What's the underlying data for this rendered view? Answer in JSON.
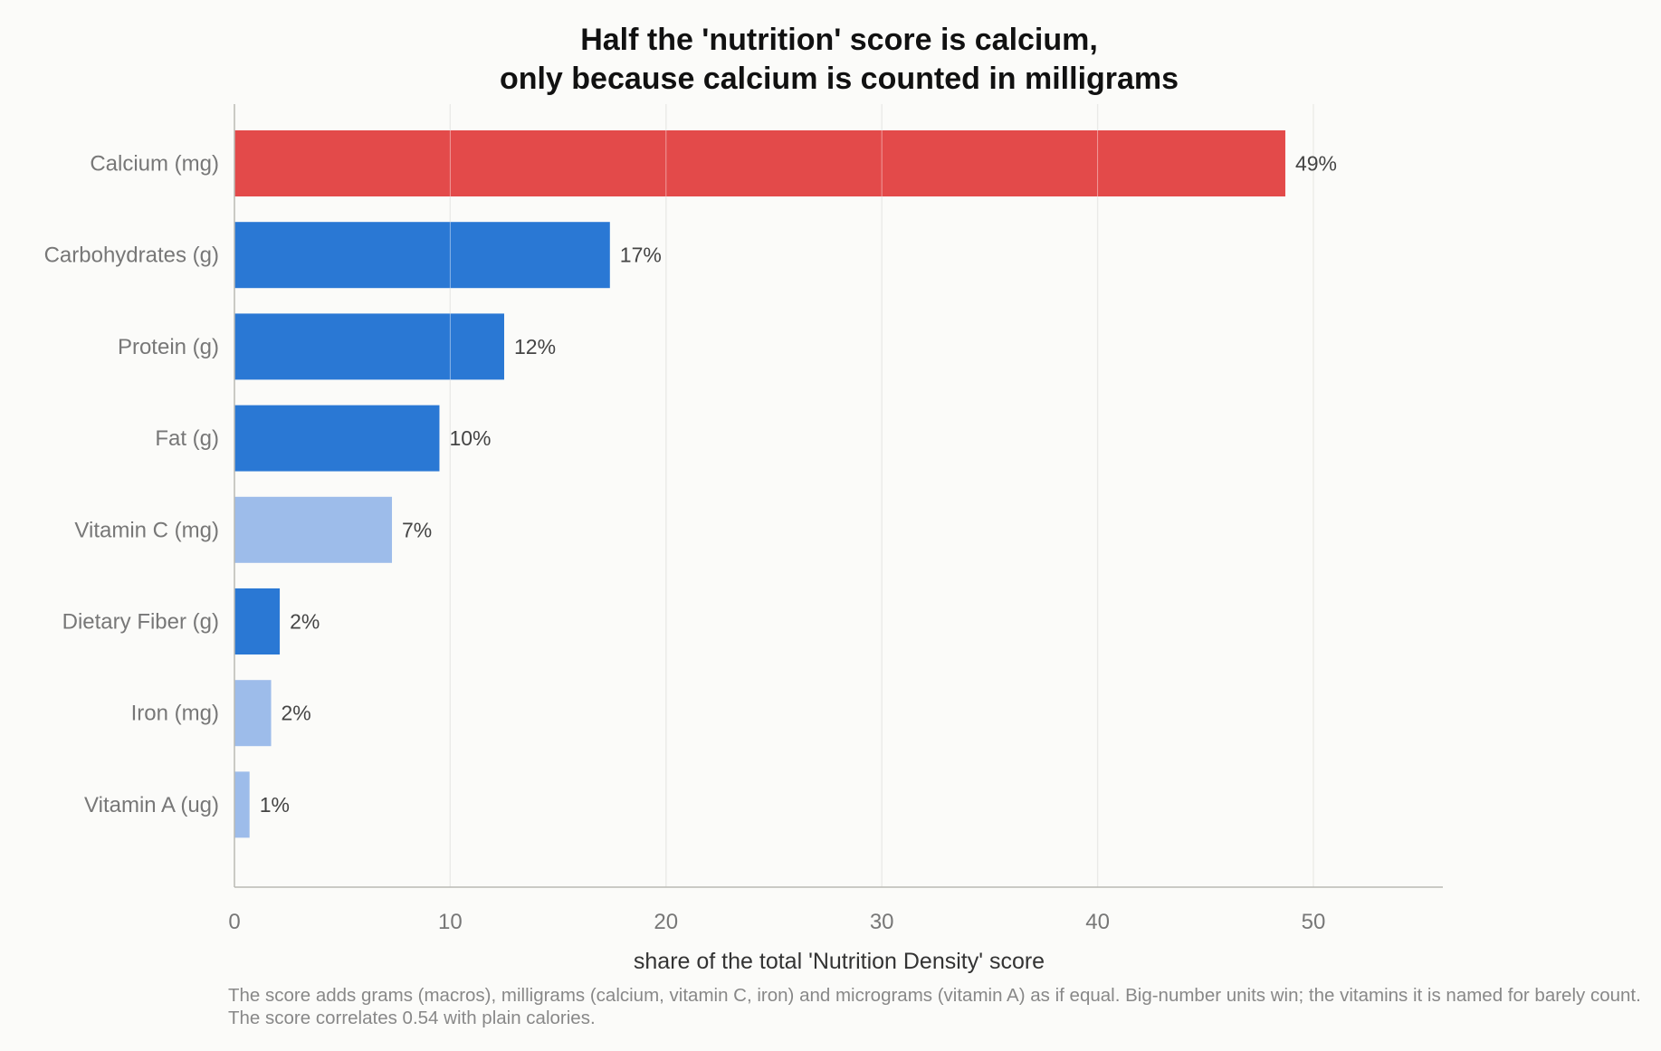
{
  "chart_data": {
    "type": "bar",
    "orientation": "horizontal",
    "title_lines": [
      "Half the 'nutrition' score is calcium,",
      "only because calcium is counted in milligrams"
    ],
    "xlabel": "share of the total 'Nutrition Density' score",
    "ylabel": "",
    "xlim": [
      0,
      56
    ],
    "xticks": [
      0,
      10,
      20,
      30,
      40,
      50
    ],
    "grid": "vertical",
    "categories": [
      "Calcium (mg)",
      "Carbohydrates (g)",
      "Protein (g)",
      "Fat (g)",
      "Vitamin C (mg)",
      "Dietary Fiber (g)",
      "Iron (mg)",
      "Vitamin A (ug)"
    ],
    "values": [
      48.7,
      17.4,
      12.5,
      9.5,
      7.3,
      2.1,
      1.7,
      0.7
    ],
    "value_labels": [
      "49%",
      "17%",
      "12%",
      "10%",
      "7%",
      "2%",
      "2%",
      "1%"
    ],
    "bar_colors": [
      "#e34a4a",
      "#2a78d4",
      "#2a78d4",
      "#2a78d4",
      "#9dbcea",
      "#2a78d4",
      "#9dbcea",
      "#9dbcea"
    ]
  },
  "footnote": "The score adds grams (macros), milligrams (calcium, vitamin C, iron) and micrograms (vitamin A) as if equal. Big-number units win; the vitamins it is named for barely count. The score correlates 0.54 with plain calories."
}
